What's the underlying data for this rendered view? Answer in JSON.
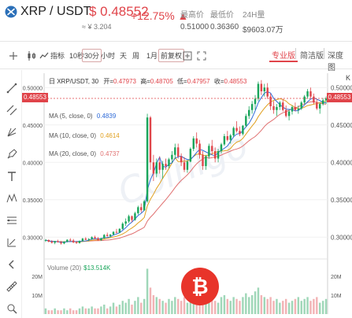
{
  "header": {
    "pair": "XRP / USDT",
    "price": "$ 0.48552",
    "price_cny": "≈ ¥ 3.204",
    "change": "+12.75% ▲",
    "stats": [
      {
        "label": "最高价",
        "value": "0.51000"
      },
      {
        "label": "最低价",
        "value": "0.36360"
      },
      {
        "label": "24H量",
        "value": "$9603.07万"
      }
    ],
    "right_cut_text": "K"
  },
  "toolbar": {
    "items": [
      "指标",
      "10秒",
      "30分",
      "小时",
      "天",
      "周",
      "1月",
      "前复权"
    ],
    "selected": "30分",
    "view_tabs": [
      "专业版",
      "简洁版",
      "深度图"
    ],
    "active_view": "专业版"
  },
  "chart": {
    "title": "日 XRP/USDT, 30",
    "ohlc": [
      {
        "label": "开=",
        "value": "0.47973"
      },
      {
        "label": "高=",
        "value": "0.48705"
      },
      {
        "label": "低=",
        "value": "0.47957"
      },
      {
        "label": "收=",
        "value": "0.48553"
      }
    ],
    "ma": [
      {
        "label": "MA (5, close, 0)",
        "value": "0.4839",
        "color": "#2f6bd8"
      },
      {
        "label": "MA (10, close, 0)",
        "value": "0.4614",
        "color": "#e0a020"
      },
      {
        "label": "MA (20, close, 0)",
        "value": "0.4737",
        "color": "#e07070"
      }
    ],
    "last_price_flag": "0.48553",
    "volume_label": "Volume (20)",
    "volume_value": "$13.514K",
    "watermark": "Coinigo"
  },
  "chart_data": {
    "type": "candlestick",
    "y_axis_labels": [
      "0.50000",
      "0.45000",
      "0.40000",
      "0.35000",
      "0.30000"
    ],
    "y_left_labels": [
      "0.50000",
      "0.45000",
      "0.40000",
      "0.35000",
      "0.30000"
    ],
    "volume_axis_labels": [
      "20M",
      "10M"
    ],
    "volume_axis_right": [
      "20M",
      "10M"
    ],
    "ylim": [
      0.275,
      0.515
    ],
    "vol_max": 25,
    "candles": [
      [
        0.295,
        0.2975,
        0.2935,
        0.296
      ],
      [
        0.296,
        0.297,
        0.293,
        0.294
      ],
      [
        0.294,
        0.296,
        0.2915,
        0.2925
      ],
      [
        0.2925,
        0.295,
        0.2905,
        0.2945
      ],
      [
        0.2945,
        0.2965,
        0.293,
        0.293
      ],
      [
        0.293,
        0.295,
        0.29,
        0.2915
      ],
      [
        0.2915,
        0.2945,
        0.2905,
        0.294
      ],
      [
        0.294,
        0.297,
        0.293,
        0.2965
      ],
      [
        0.2965,
        0.2985,
        0.2945,
        0.2955
      ],
      [
        0.2955,
        0.2975,
        0.292,
        0.293
      ],
      [
        0.293,
        0.295,
        0.291,
        0.292
      ],
      [
        0.292,
        0.2955,
        0.2915,
        0.295
      ],
      [
        0.295,
        0.299,
        0.294,
        0.298
      ],
      [
        0.298,
        0.3,
        0.296,
        0.2965
      ],
      [
        0.2965,
        0.2985,
        0.2945,
        0.2975
      ],
      [
        0.2975,
        0.301,
        0.2965,
        0.3
      ],
      [
        0.3,
        0.302,
        0.2975,
        0.2985
      ],
      [
        0.2985,
        0.3,
        0.295,
        0.296
      ],
      [
        0.296,
        0.299,
        0.295,
        0.2985
      ],
      [
        0.2985,
        0.304,
        0.298,
        0.303
      ],
      [
        0.303,
        0.306,
        0.3005,
        0.3015
      ],
      [
        0.3015,
        0.304,
        0.2995,
        0.3035
      ],
      [
        0.3035,
        0.308,
        0.3025,
        0.307
      ],
      [
        0.307,
        0.311,
        0.305,
        0.306
      ],
      [
        0.306,
        0.312,
        0.3055,
        0.311
      ],
      [
        0.311,
        0.32,
        0.31,
        0.318
      ],
      [
        0.318,
        0.325,
        0.315,
        0.321
      ],
      [
        0.321,
        0.33,
        0.319,
        0.328
      ],
      [
        0.328,
        0.329,
        0.32,
        0.323
      ],
      [
        0.323,
        0.334,
        0.322,
        0.332
      ],
      [
        0.332,
        0.342,
        0.33,
        0.34
      ],
      [
        0.34,
        0.345,
        0.333,
        0.336
      ],
      [
        0.336,
        0.35,
        0.335,
        0.348
      ],
      [
        0.348,
        0.465,
        0.346,
        0.46
      ],
      [
        0.46,
        0.462,
        0.39,
        0.4
      ],
      [
        0.4,
        0.41,
        0.375,
        0.385
      ],
      [
        0.385,
        0.405,
        0.38,
        0.4
      ],
      [
        0.4,
        0.408,
        0.385,
        0.39
      ],
      [
        0.39,
        0.402,
        0.378,
        0.398
      ],
      [
        0.398,
        0.405,
        0.39,
        0.395
      ],
      [
        0.395,
        0.406,
        0.392,
        0.404
      ],
      [
        0.404,
        0.415,
        0.399,
        0.41
      ],
      [
        0.41,
        0.425,
        0.405,
        0.42
      ],
      [
        0.42,
        0.425,
        0.405,
        0.408
      ],
      [
        0.408,
        0.412,
        0.395,
        0.4
      ],
      [
        0.4,
        0.407,
        0.387,
        0.39
      ],
      [
        0.39,
        0.403,
        0.386,
        0.401
      ],
      [
        0.401,
        0.42,
        0.4,
        0.418
      ],
      [
        0.418,
        0.435,
        0.415,
        0.432
      ],
      [
        0.432,
        0.44,
        0.42,
        0.425
      ],
      [
        0.425,
        0.43,
        0.405,
        0.41
      ],
      [
        0.41,
        0.415,
        0.39,
        0.395
      ],
      [
        0.395,
        0.41,
        0.39,
        0.408
      ],
      [
        0.408,
        0.425,
        0.405,
        0.422
      ],
      [
        0.422,
        0.43,
        0.41,
        0.415
      ],
      [
        0.415,
        0.42,
        0.4,
        0.405
      ],
      [
        0.405,
        0.418,
        0.4,
        0.415
      ],
      [
        0.415,
        0.426,
        0.412,
        0.424
      ],
      [
        0.424,
        0.438,
        0.422,
        0.435
      ],
      [
        0.435,
        0.442,
        0.428,
        0.43
      ],
      [
        0.43,
        0.438,
        0.425,
        0.436
      ],
      [
        0.436,
        0.448,
        0.434,
        0.446
      ],
      [
        0.446,
        0.455,
        0.44,
        0.442
      ],
      [
        0.442,
        0.448,
        0.435,
        0.438
      ],
      [
        0.438,
        0.45,
        0.436,
        0.449
      ],
      [
        0.449,
        0.465,
        0.447,
        0.462
      ],
      [
        0.462,
        0.475,
        0.458,
        0.47
      ],
      [
        0.47,
        0.482,
        0.465,
        0.478
      ],
      [
        0.478,
        0.49,
        0.47,
        0.485
      ],
      [
        0.485,
        0.508,
        0.482,
        0.505
      ],
      [
        0.505,
        0.51,
        0.49,
        0.495
      ],
      [
        0.495,
        0.505,
        0.488,
        0.5
      ],
      [
        0.5,
        0.506,
        0.485,
        0.488
      ],
      [
        0.488,
        0.492,
        0.47,
        0.475
      ],
      [
        0.475,
        0.482,
        0.465,
        0.47
      ],
      [
        0.47,
        0.478,
        0.462,
        0.474
      ],
      [
        0.474,
        0.482,
        0.47,
        0.48
      ],
      [
        0.48,
        0.485,
        0.468,
        0.47
      ],
      [
        0.47,
        0.476,
        0.46,
        0.462
      ],
      [
        0.462,
        0.47,
        0.456,
        0.468
      ],
      [
        0.468,
        0.476,
        0.464,
        0.474
      ],
      [
        0.474,
        0.48,
        0.468,
        0.47
      ],
      [
        0.47,
        0.476,
        0.465,
        0.472
      ],
      [
        0.472,
        0.482,
        0.47,
        0.48
      ],
      [
        0.48,
        0.49,
        0.478,
        0.488
      ],
      [
        0.488,
        0.498,
        0.485,
        0.495
      ],
      [
        0.495,
        0.5,
        0.485,
        0.488
      ],
      [
        0.488,
        0.492,
        0.478,
        0.48
      ],
      [
        0.48,
        0.485,
        0.47,
        0.472
      ],
      [
        0.472,
        0.48,
        0.465,
        0.478
      ],
      [
        0.478,
        0.486,
        0.476,
        0.483
      ],
      [
        0.483,
        0.488,
        0.478,
        0.4855
      ]
    ],
    "volume": [
      3,
      2,
      2,
      3,
      2,
      2,
      3,
      2,
      3,
      2,
      2,
      3,
      4,
      3,
      3,
      4,
      3,
      3,
      4,
      5,
      3,
      4,
      6,
      4,
      5,
      7,
      6,
      8,
      5,
      7,
      9,
      6,
      8,
      24,
      14,
      10,
      9,
      8,
      7,
      6,
      8,
      7,
      9,
      8,
      7,
      9,
      6,
      8,
      10,
      9,
      8,
      11,
      7,
      9,
      8,
      7,
      6,
      9,
      10,
      8,
      7,
      9,
      8,
      7,
      9,
      11,
      9,
      10,
      12,
      14,
      10,
      9,
      8,
      9,
      7,
      8,
      6,
      7,
      8,
      6,
      7,
      8,
      9,
      7,
      8,
      9,
      7,
      8,
      9,
      6,
      7,
      8
    ]
  },
  "colors": {
    "up": "#19a55b",
    "down": "#e0444a",
    "ma5": "#2f6bd8",
    "ma10": "#e0a020",
    "ma20": "#e07070"
  }
}
